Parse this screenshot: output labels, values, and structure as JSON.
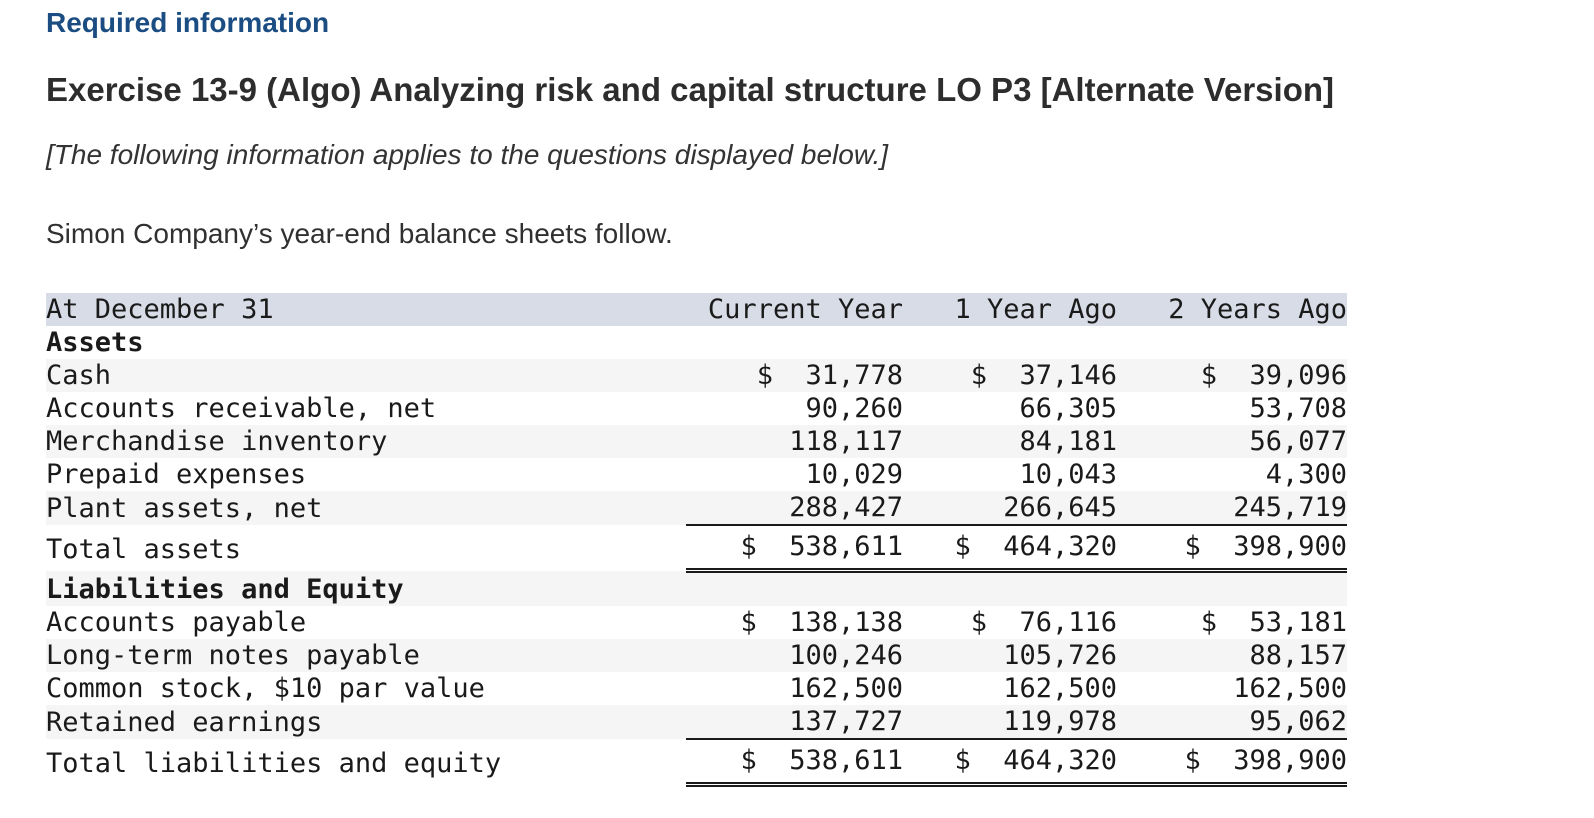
{
  "header": {
    "required_label": "Required information",
    "exercise_title": "Exercise 13-9 (Algo) Analyzing risk and capital structure LO P3 [Alternate Version]",
    "note": "[The following information applies to the questions displayed below.]",
    "intro": "Simon Company’s year-end balance sheets follow."
  },
  "table": {
    "columns": [
      "At December 31",
      "Current Year",
      "1 Year Ago",
      "2 Years Ago"
    ],
    "rows": [
      {
        "label": "Assets"
      },
      {
        "label": "Cash",
        "v1": "$  31,778",
        "v2": "$  37,146",
        "v3": "$  39,096"
      },
      {
        "label": "Accounts receivable, net",
        "v1": "90,260",
        "v2": "66,305",
        "v3": "53,708"
      },
      {
        "label": "Merchandise inventory",
        "v1": "118,117",
        "v2": "84,181",
        "v3": "56,077"
      },
      {
        "label": "Prepaid expenses",
        "v1": "10,029",
        "v2": "10,043",
        "v3": "4,300"
      },
      {
        "label": "Plant assets, net",
        "v1": "288,427",
        "v2": "266,645",
        "v3": "245,719"
      },
      {
        "label": "Total assets",
        "v1": "$  538,611",
        "v2": "$  464,320",
        "v3": "$  398,900"
      },
      {
        "label": "Liabilities and Equity"
      },
      {
        "label": "Accounts payable",
        "v1": "$  138,138",
        "v2": "$  76,116",
        "v3": "$  53,181"
      },
      {
        "label": "Long-term notes payable",
        "v1": "100,246",
        "v2": "105,726",
        "v3": "88,157"
      },
      {
        "label": "Common stock, $10 par value",
        "v1": "162,500",
        "v2": "162,500",
        "v3": "162,500"
      },
      {
        "label": "Retained earnings",
        "v1": "137,727",
        "v2": "119,978",
        "v3": "95,062"
      },
      {
        "label": "Total liabilities and equity",
        "v1": "$  538,611",
        "v2": "$  464,320",
        "v3": "$  398,900"
      }
    ]
  }
}
